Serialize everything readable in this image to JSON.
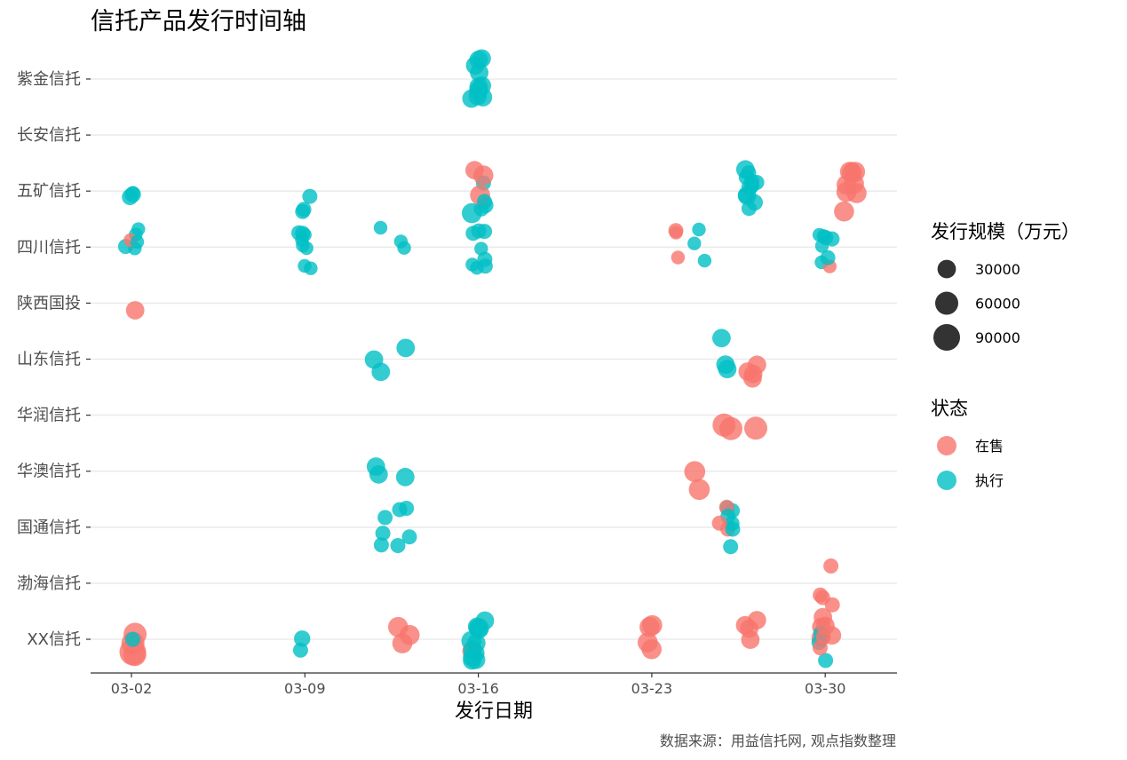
{
  "chart_data": {
    "type": "scatter",
    "title": "信托产品发行时间轴",
    "xlabel": "发行日期",
    "ylabel": "",
    "caption": "数据来源：用益信托网, 观点指数整理",
    "x_ticks": [
      "03-02",
      "03-09",
      "03-16",
      "03-23",
      "03-30"
    ],
    "y_categories": [
      "XX信托",
      "渤海信托",
      "国通信托",
      "华澳信托",
      "华润信托",
      "山东信托",
      "陕西国投",
      "四川信托",
      "五矿信托",
      "长安信托",
      "紫金信托"
    ],
    "legend_size": {
      "title": "发行规模（万元）",
      "values": [
        30000,
        60000,
        90000
      ],
      "labels": [
        "30000",
        "60000",
        "90000"
      ]
    },
    "legend_color": {
      "title": "状态",
      "labels": [
        "在售",
        "执行"
      ],
      "colors": [
        "#F8766D",
        "#00BFC4"
      ]
    },
    "grid": "horizontal",
    "points": [
      {
        "issuer": "紫金信托",
        "date": "03-16",
        "status": "执行",
        "scale": 30000
      },
      {
        "issuer": "紫金信托",
        "date": "03-16",
        "status": "执行",
        "scale": 30000
      },
      {
        "issuer": "紫金信托",
        "date": "03-16",
        "status": "执行",
        "scale": 30000
      },
      {
        "issuer": "紫金信托",
        "date": "03-16",
        "status": "执行",
        "scale": 30000
      },
      {
        "issuer": "紫金信托",
        "date": "03-16",
        "status": "执行",
        "scale": 30000
      },
      {
        "issuer": "紫金信托",
        "date": "03-16",
        "status": "执行",
        "scale": 30000
      },
      {
        "issuer": "紫金信托",
        "date": "03-16",
        "status": "执行",
        "scale": 30000
      },
      {
        "issuer": "紫金信托",
        "date": "03-16",
        "status": "执行",
        "scale": 30000
      },
      {
        "issuer": "紫金信托",
        "date": "03-16",
        "status": "执行",
        "scale": 30000
      },
      {
        "issuer": "紫金信托",
        "date": "03-16",
        "status": "执行",
        "scale": 30000
      },
      {
        "issuer": "五矿信托",
        "date": "03-02",
        "status": "执行",
        "scale": 20000
      },
      {
        "issuer": "五矿信托",
        "date": "03-02",
        "status": "执行",
        "scale": 10000
      },
      {
        "issuer": "五矿信托",
        "date": "03-02",
        "status": "执行",
        "scale": 20000
      },
      {
        "issuer": "五矿信托",
        "date": "03-09",
        "status": "执行",
        "scale": 15000
      },
      {
        "issuer": "五矿信托",
        "date": "03-09",
        "status": "执行",
        "scale": 15000
      },
      {
        "issuer": "五矿信托",
        "date": "03-09",
        "status": "执行",
        "scale": 15000
      },
      {
        "issuer": "五矿信托",
        "date": "03-16",
        "status": "在售",
        "scale": 30000
      },
      {
        "issuer": "五矿信托",
        "date": "03-16",
        "status": "执行",
        "scale": 20000
      },
      {
        "issuer": "五矿信托",
        "date": "03-16",
        "status": "执行",
        "scale": 15000
      },
      {
        "issuer": "五矿信托",
        "date": "03-16",
        "status": "执行",
        "scale": 15000
      },
      {
        "issuer": "五矿信托",
        "date": "03-16",
        "status": "在售",
        "scale": 40000
      },
      {
        "issuer": "五矿信托",
        "date": "03-16",
        "status": "执行",
        "scale": 40000
      },
      {
        "issuer": "五矿信托",
        "date": "03-16",
        "status": "在售",
        "scale": 40000
      },
      {
        "issuer": "五矿信托",
        "date": "03-16",
        "status": "执行",
        "scale": 15000
      },
      {
        "issuer": "五矿信托",
        "date": "03-27",
        "status": "执行",
        "scale": 30000
      },
      {
        "issuer": "五矿信托",
        "date": "03-27",
        "status": "执行",
        "scale": 20000
      },
      {
        "issuer": "五矿信托",
        "date": "03-27",
        "status": "执行",
        "scale": 20000
      },
      {
        "issuer": "五矿信托",
        "date": "03-27",
        "status": "执行",
        "scale": 15000
      },
      {
        "issuer": "五矿信托",
        "date": "03-27",
        "status": "执行",
        "scale": 15000
      },
      {
        "issuer": "五矿信托",
        "date": "03-27",
        "status": "执行",
        "scale": 15000
      },
      {
        "issuer": "五矿信托",
        "date": "03-27",
        "status": "执行",
        "scale": 15000
      },
      {
        "issuer": "五矿信托",
        "date": "03-27",
        "status": "执行",
        "scale": 15000
      },
      {
        "issuer": "五矿信托",
        "date": "03-27",
        "status": "执行",
        "scale": 20000
      },
      {
        "issuer": "五矿信托",
        "date": "03-27",
        "status": "执行",
        "scale": 15000
      },
      {
        "issuer": "五矿信托",
        "date": "03-27",
        "status": "执行",
        "scale": 30000
      },
      {
        "issuer": "五矿信托",
        "date": "03-31",
        "status": "在售",
        "scale": 15000
      },
      {
        "issuer": "五矿信托",
        "date": "03-31",
        "status": "在售",
        "scale": 40000
      },
      {
        "issuer": "五矿信托",
        "date": "03-31",
        "status": "在售",
        "scale": 40000
      },
      {
        "issuer": "五矿信托",
        "date": "03-31",
        "status": "在售",
        "scale": 40000
      },
      {
        "issuer": "五矿信托",
        "date": "03-31",
        "status": "在售",
        "scale": 40000
      },
      {
        "issuer": "五矿信托",
        "date": "03-31",
        "status": "在售",
        "scale": 40000
      },
      {
        "issuer": "五矿信托",
        "date": "03-31",
        "status": "在售",
        "scale": 40000
      },
      {
        "issuer": "五矿信托",
        "date": "03-31",
        "status": "在售",
        "scale": 40000
      },
      {
        "issuer": "五矿信托",
        "date": "03-31",
        "status": "在售",
        "scale": 40000
      },
      {
        "issuer": "四川信托",
        "date": "03-02",
        "status": "执行",
        "scale": 10000
      },
      {
        "issuer": "四川信托",
        "date": "03-02",
        "status": "执行",
        "scale": 10000
      },
      {
        "issuer": "四川信托",
        "date": "03-02",
        "status": "执行",
        "scale": 15000
      },
      {
        "issuer": "四川信托",
        "date": "03-02",
        "status": "在售",
        "scale": 10000
      },
      {
        "issuer": "四川信托",
        "date": "03-02",
        "status": "执行",
        "scale": 10000
      },
      {
        "issuer": "四川信托",
        "date": "03-02",
        "status": "执行",
        "scale": 10000
      },
      {
        "issuer": "四川信托",
        "date": "03-09",
        "status": "执行",
        "scale": 10000
      },
      {
        "issuer": "四川信托",
        "date": "03-09",
        "status": "执行",
        "scale": 10000
      },
      {
        "issuer": "四川信托",
        "date": "03-09",
        "status": "执行",
        "scale": 10000
      },
      {
        "issuer": "四川信托",
        "date": "03-09",
        "status": "执行",
        "scale": 15000
      },
      {
        "issuer": "四川信托",
        "date": "03-09",
        "status": "执行",
        "scale": 10000
      },
      {
        "issuer": "四川信托",
        "date": "03-09",
        "status": "执行",
        "scale": 10000
      },
      {
        "issuer": "四川信托",
        "date": "03-09",
        "status": "执行",
        "scale": 15000
      },
      {
        "issuer": "四川信托",
        "date": "03-09",
        "status": "执行",
        "scale": 10000
      },
      {
        "issuer": "四川信托",
        "date": "03-12",
        "status": "执行",
        "scale": 10000
      },
      {
        "issuer": "四川信托",
        "date": "03-13",
        "status": "执行",
        "scale": 10000
      },
      {
        "issuer": "四川信托",
        "date": "03-13",
        "status": "执行",
        "scale": 10000
      },
      {
        "issuer": "四川信托",
        "date": "03-16",
        "status": "执行",
        "scale": 15000
      },
      {
        "issuer": "四川信托",
        "date": "03-16",
        "status": "执行",
        "scale": 15000
      },
      {
        "issuer": "四川信托",
        "date": "03-16",
        "status": "执行",
        "scale": 15000
      },
      {
        "issuer": "四川信托",
        "date": "03-16",
        "status": "执行",
        "scale": 10000
      },
      {
        "issuer": "四川信托",
        "date": "03-16",
        "status": "执行",
        "scale": 10000
      },
      {
        "issuer": "四川信托",
        "date": "03-16",
        "status": "执行",
        "scale": 15000
      },
      {
        "issuer": "四川信托",
        "date": "03-16",
        "status": "执行",
        "scale": 15000
      },
      {
        "issuer": "四川信托",
        "date": "03-16",
        "status": "执行",
        "scale": 10000
      },
      {
        "issuer": "四川信托",
        "date": "03-24",
        "status": "在售",
        "scale": 10000
      },
      {
        "issuer": "四川信托",
        "date": "03-24",
        "status": "在售",
        "scale": 15000
      },
      {
        "issuer": "四川信托",
        "date": "03-24",
        "status": "在售",
        "scale": 10000
      },
      {
        "issuer": "四川信托",
        "date": "03-25",
        "status": "执行",
        "scale": 10000
      },
      {
        "issuer": "四川信托",
        "date": "03-25",
        "status": "执行",
        "scale": 10000
      },
      {
        "issuer": "四川信托",
        "date": "03-25",
        "status": "执行",
        "scale": 10000
      },
      {
        "issuer": "四川信托",
        "date": "03-30",
        "status": "执行",
        "scale": 10000
      },
      {
        "issuer": "四川信托",
        "date": "03-30",
        "status": "在售",
        "scale": 10000
      },
      {
        "issuer": "四川信托",
        "date": "03-30",
        "status": "执行",
        "scale": 15000
      },
      {
        "issuer": "四川信托",
        "date": "03-30",
        "status": "执行",
        "scale": 10000
      },
      {
        "issuer": "四川信托",
        "date": "03-30",
        "status": "执行",
        "scale": 10000
      },
      {
        "issuer": "四川信托",
        "date": "03-30",
        "status": "执行",
        "scale": 15000
      },
      {
        "issuer": "四川信托",
        "date": "03-30",
        "status": "执行",
        "scale": 10000
      },
      {
        "issuer": "四川信托",
        "date": "03-30",
        "status": "执行",
        "scale": 15000
      },
      {
        "issuer": "陕西国投",
        "date": "03-02",
        "status": "在售",
        "scale": 30000
      },
      {
        "issuer": "山东信托",
        "date": "03-13",
        "status": "执行",
        "scale": 30000
      },
      {
        "issuer": "山东信托",
        "date": "03-12",
        "status": "执行",
        "scale": 30000
      },
      {
        "issuer": "山东信托",
        "date": "03-12",
        "status": "执行",
        "scale": 30000
      },
      {
        "issuer": "山东信托",
        "date": "03-26",
        "status": "执行",
        "scale": 30000
      },
      {
        "issuer": "山东信托",
        "date": "03-26",
        "status": "执行",
        "scale": 30000
      },
      {
        "issuer": "山东信托",
        "date": "03-26",
        "status": "执行",
        "scale": 30000
      },
      {
        "issuer": "山东信托",
        "date": "03-27",
        "status": "在售",
        "scale": 30000
      },
      {
        "issuer": "山东信托",
        "date": "03-27",
        "status": "在售",
        "scale": 30000
      },
      {
        "issuer": "山东信托",
        "date": "03-27",
        "status": "在售",
        "scale": 30000
      },
      {
        "issuer": "山东信托",
        "date": "03-27",
        "status": "在售",
        "scale": 30000
      },
      {
        "issuer": "华润信托",
        "date": "03-27",
        "status": "在售",
        "scale": 60000
      },
      {
        "issuer": "华润信托",
        "date": "03-26",
        "status": "在售",
        "scale": 60000
      },
      {
        "issuer": "华润信托",
        "date": "03-26",
        "status": "在售",
        "scale": 60000
      },
      {
        "issuer": "华澳信托",
        "date": "03-12",
        "status": "执行",
        "scale": 30000
      },
      {
        "issuer": "华澳信托",
        "date": "03-12",
        "status": "执行",
        "scale": 30000
      },
      {
        "issuer": "华澳信托",
        "date": "03-13",
        "status": "执行",
        "scale": 30000
      },
      {
        "issuer": "华澳信托",
        "date": "03-25",
        "status": "在售",
        "scale": 45000
      },
      {
        "issuer": "华澳信托",
        "date": "03-25",
        "status": "在售",
        "scale": 45000
      },
      {
        "issuer": "国通信托",
        "date": "03-13",
        "status": "执行",
        "scale": 15000
      },
      {
        "issuer": "国通信托",
        "date": "03-13",
        "status": "执行",
        "scale": 15000
      },
      {
        "issuer": "国通信托",
        "date": "03-12",
        "status": "执行",
        "scale": 15000
      },
      {
        "issuer": "国通信托",
        "date": "03-12",
        "status": "执行",
        "scale": 15000
      },
      {
        "issuer": "国通信托",
        "date": "03-12",
        "status": "执行",
        "scale": 15000
      },
      {
        "issuer": "国通信托",
        "date": "03-13",
        "status": "执行",
        "scale": 15000
      },
      {
        "issuer": "国通信托",
        "date": "03-13",
        "status": "执行",
        "scale": 15000
      },
      {
        "issuer": "国通信托",
        "date": "03-26",
        "status": "执行",
        "scale": 15000
      },
      {
        "issuer": "国通信托",
        "date": "03-26",
        "status": "执行",
        "scale": 15000
      },
      {
        "issuer": "国通信托",
        "date": "03-26",
        "status": "在售",
        "scale": 15000
      },
      {
        "issuer": "国通信托",
        "date": "03-26",
        "status": "执行",
        "scale": 15000
      },
      {
        "issuer": "国通信托",
        "date": "03-26",
        "status": "在售",
        "scale": 15000
      },
      {
        "issuer": "国通信托",
        "date": "03-26",
        "status": "执行",
        "scale": 15000
      },
      {
        "issuer": "国通信托",
        "date": "03-26",
        "status": "执行",
        "scale": 15000
      },
      {
        "issuer": "国通信托",
        "date": "03-26",
        "status": "在售",
        "scale": 15000
      },
      {
        "issuer": "国通信托",
        "date": "03-26",
        "status": "执行",
        "scale": 15000
      },
      {
        "issuer": "渤海信托",
        "date": "03-30",
        "status": "在售",
        "scale": 15000
      },
      {
        "issuer": "渤海信托",
        "date": "03-30",
        "status": "在售",
        "scale": 15000
      },
      {
        "issuer": "渤海信托",
        "date": "03-30",
        "status": "在售",
        "scale": 15000
      },
      {
        "issuer": "渤海信托",
        "date": "03-30",
        "status": "在售",
        "scale": 15000
      },
      {
        "issuer": "XX信托",
        "date": "03-02",
        "status": "在售",
        "scale": 90000
      },
      {
        "issuer": "XX信托",
        "date": "03-02",
        "status": "在售",
        "scale": 60000
      },
      {
        "issuer": "XX信托",
        "date": "03-02",
        "status": "在售",
        "scale": 60000
      },
      {
        "issuer": "XX信托",
        "date": "03-02",
        "status": "在售",
        "scale": 60000
      },
      {
        "issuer": "XX信托",
        "date": "03-02",
        "status": "执行",
        "scale": 15000
      },
      {
        "issuer": "XX信托",
        "date": "03-09",
        "status": "执行",
        "scale": 20000
      },
      {
        "issuer": "XX信托",
        "date": "03-09",
        "status": "执行",
        "scale": 15000
      },
      {
        "issuer": "XX信托",
        "date": "03-13",
        "status": "在售",
        "scale": 40000
      },
      {
        "issuer": "XX信托",
        "date": "03-13",
        "status": "在售",
        "scale": 40000
      },
      {
        "issuer": "XX信托",
        "date": "03-13",
        "status": "在售",
        "scale": 40000
      },
      {
        "issuer": "XX信托",
        "date": "03-16",
        "status": "执行",
        "scale": 30000
      },
      {
        "issuer": "XX信托",
        "date": "03-16",
        "status": "执行",
        "scale": 30000
      },
      {
        "issuer": "XX信托",
        "date": "03-16",
        "status": "执行",
        "scale": 40000
      },
      {
        "issuer": "XX信托",
        "date": "03-16",
        "status": "在售",
        "scale": 30000
      },
      {
        "issuer": "XX信托",
        "date": "03-16",
        "status": "执行",
        "scale": 40000
      },
      {
        "issuer": "XX信托",
        "date": "03-16",
        "status": "执行",
        "scale": 30000
      },
      {
        "issuer": "XX信托",
        "date": "03-16",
        "status": "执行",
        "scale": 30000
      },
      {
        "issuer": "XX信托",
        "date": "03-16",
        "status": "执行",
        "scale": 30000
      },
      {
        "issuer": "XX信托",
        "date": "03-16",
        "status": "执行",
        "scale": 30000
      },
      {
        "issuer": "XX信托",
        "date": "03-16",
        "status": "执行",
        "scale": 30000
      },
      {
        "issuer": "XX信托",
        "date": "03-16",
        "status": "执行",
        "scale": 30000
      },
      {
        "issuer": "XX信托",
        "date": "03-16",
        "status": "执行",
        "scale": 30000
      },
      {
        "issuer": "XX信托",
        "date": "03-23",
        "status": "在售",
        "scale": 40000
      },
      {
        "issuer": "XX信托",
        "date": "03-23",
        "status": "在售",
        "scale": 40000
      },
      {
        "issuer": "XX信托",
        "date": "03-23",
        "status": "在售",
        "scale": 40000
      },
      {
        "issuer": "XX信托",
        "date": "03-23",
        "status": "在售",
        "scale": 40000
      },
      {
        "issuer": "XX信托",
        "date": "03-27",
        "status": "在售",
        "scale": 30000
      },
      {
        "issuer": "XX信托",
        "date": "03-27",
        "status": "在售",
        "scale": 30000
      },
      {
        "issuer": "XX信托",
        "date": "03-27",
        "status": "在售",
        "scale": 30000
      },
      {
        "issuer": "XX信托",
        "date": "03-27",
        "status": "在售",
        "scale": 30000
      },
      {
        "issuer": "XX信托",
        "date": "03-30",
        "status": "在售",
        "scale": 30000
      },
      {
        "issuer": "XX信托",
        "date": "03-30",
        "status": "在售",
        "scale": 30000
      },
      {
        "issuer": "XX信托",
        "date": "03-30",
        "status": "在售",
        "scale": 30000
      },
      {
        "issuer": "XX信托",
        "date": "03-30",
        "status": "在售",
        "scale": 30000
      },
      {
        "issuer": "XX信托",
        "date": "03-30",
        "status": "执行",
        "scale": 15000
      },
      {
        "issuer": "XX信托",
        "date": "03-30",
        "status": "执行",
        "scale": 15000
      },
      {
        "issuer": "XX信托",
        "date": "03-30",
        "status": "执行",
        "scale": 15000
      },
      {
        "issuer": "XX信托",
        "date": "03-30",
        "status": "在售",
        "scale": 30000
      },
      {
        "issuer": "XX信托",
        "date": "03-30",
        "status": "在售",
        "scale": 15000
      },
      {
        "issuer": "XX信托",
        "date": "03-30",
        "status": "在售",
        "scale": 15000
      }
    ]
  }
}
